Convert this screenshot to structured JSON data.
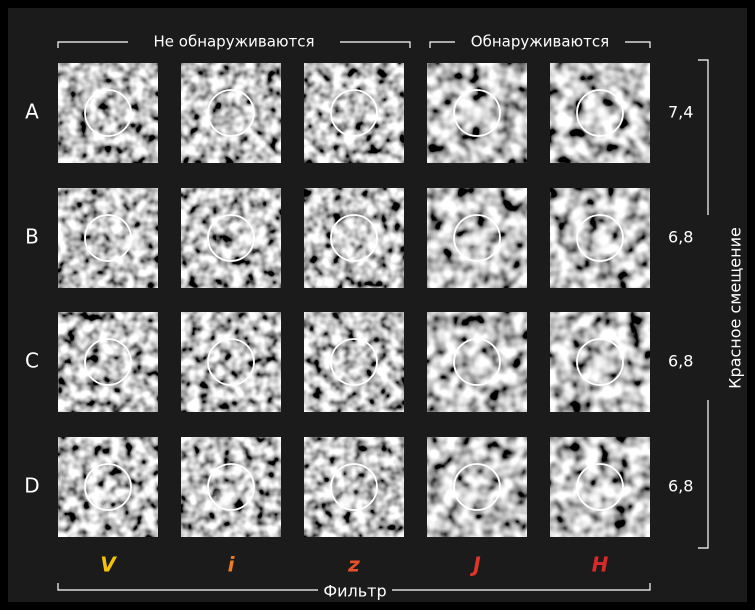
{
  "groups": [
    "Не обнаруживаются",
    "Обнаруживаются"
  ],
  "rows": [
    {
      "label": "A",
      "redshift": "7,4"
    },
    {
      "label": "B",
      "redshift": "6,8"
    },
    {
      "label": "C",
      "redshift": "6,8"
    },
    {
      "label": "D",
      "redshift": "6,8"
    }
  ],
  "filters": [
    {
      "name": "V",
      "color": "#f4c20d"
    },
    {
      "name": "i",
      "color": "#f07a1f"
    },
    {
      "name": "z",
      "color": "#e8502a"
    },
    {
      "name": "J",
      "color": "#e0352b"
    },
    {
      "name": "H",
      "color": "#d9292b"
    }
  ],
  "y_label": "Красное смещение",
  "x_label": "Фильтр"
}
